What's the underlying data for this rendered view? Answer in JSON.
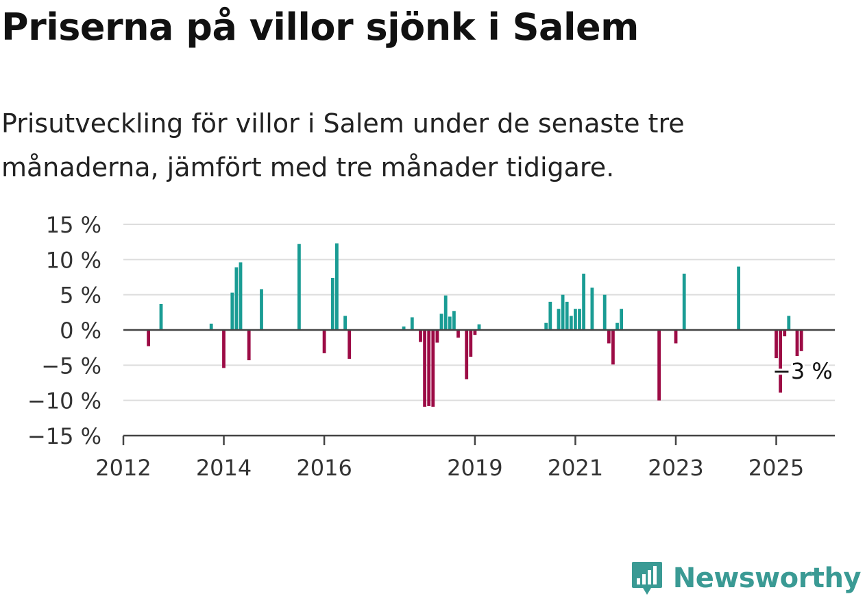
{
  "title": "Priserna på villor sjönk i Salem",
  "subtitle": "Prisutveckling för villor i Salem under de senaste tre månaderna, jämfört med tre månader tidigare.",
  "brand": "Newsworthy",
  "colors": {
    "positive": "#1a9c94",
    "negative": "#9c0b45",
    "grid": "#dddddd",
    "axis": "#444444",
    "brand": "#3a9a94"
  },
  "chart_data": {
    "type": "bar",
    "x_axis_type": "date",
    "ylabel": "",
    "ylim": [
      -15,
      15
    ],
    "yticks": [
      15,
      10,
      5,
      0,
      -5,
      -10,
      -15
    ],
    "ytick_labels": [
      "15 %",
      "10 %",
      "5 %",
      "0 %",
      "−5 %",
      "−10 %",
      "−15 %"
    ],
    "xlim": [
      "2012-01",
      "2026-03"
    ],
    "xticks": [
      "2012",
      "2014",
      "2016",
      "2019",
      "2021",
      "2023",
      "2025"
    ],
    "annotation": {
      "text": "−3 %",
      "x": "2025-06"
    },
    "series": [
      {
        "dates": [
          "2012-07",
          "2012-10",
          "2013-10",
          "2014-01",
          "2014-03",
          "2014-04",
          "2014-05",
          "2014-07",
          "2014-10",
          "2015-07",
          "2016-01",
          "2016-03",
          "2016-04",
          "2016-06",
          "2016-07",
          "2017-08",
          "2017-10",
          "2017-12",
          "2018-01",
          "2018-02",
          "2018-03",
          "2018-04",
          "2018-05",
          "2018-06",
          "2018-07",
          "2018-08",
          "2018-09",
          "2018-11",
          "2018-12",
          "2019-01",
          "2019-02",
          "2020-06",
          "2020-07",
          "2020-09",
          "2020-10",
          "2020-11",
          "2020-12",
          "2021-01",
          "2021-02",
          "2021-03",
          "2021-05",
          "2021-08",
          "2021-09",
          "2021-10",
          "2021-11",
          "2021-12",
          "2022-09",
          "2023-01",
          "2023-03",
          "2024-04",
          "2025-01",
          "2025-02",
          "2025-03",
          "2025-04",
          "2025-06",
          "2025-07"
        ],
        "values": [
          -2.3,
          3.7,
          0.9,
          -5.4,
          5.3,
          8.9,
          9.6,
          -4.3,
          5.8,
          12.2,
          -3.3,
          7.4,
          12.3,
          2.0,
          -4.1,
          0.5,
          1.8,
          -1.7,
          -10.9,
          -10.8,
          -10.9,
          -1.8,
          2.3,
          4.9,
          1.9,
          2.7,
          -1.1,
          -7.0,
          -3.8,
          -0.7,
          0.8,
          1.0,
          4.0,
          3.0,
          5.0,
          4.0,
          2.0,
          3.0,
          3.0,
          8.0,
          6.0,
          5.0,
          -1.9,
          -4.9,
          1.0,
          3.0,
          -10.0,
          -1.9,
          8.0,
          9.0,
          -4.0,
          -8.9,
          -0.9,
          2.0,
          -3.7,
          -3.0
        ]
      }
    ]
  }
}
